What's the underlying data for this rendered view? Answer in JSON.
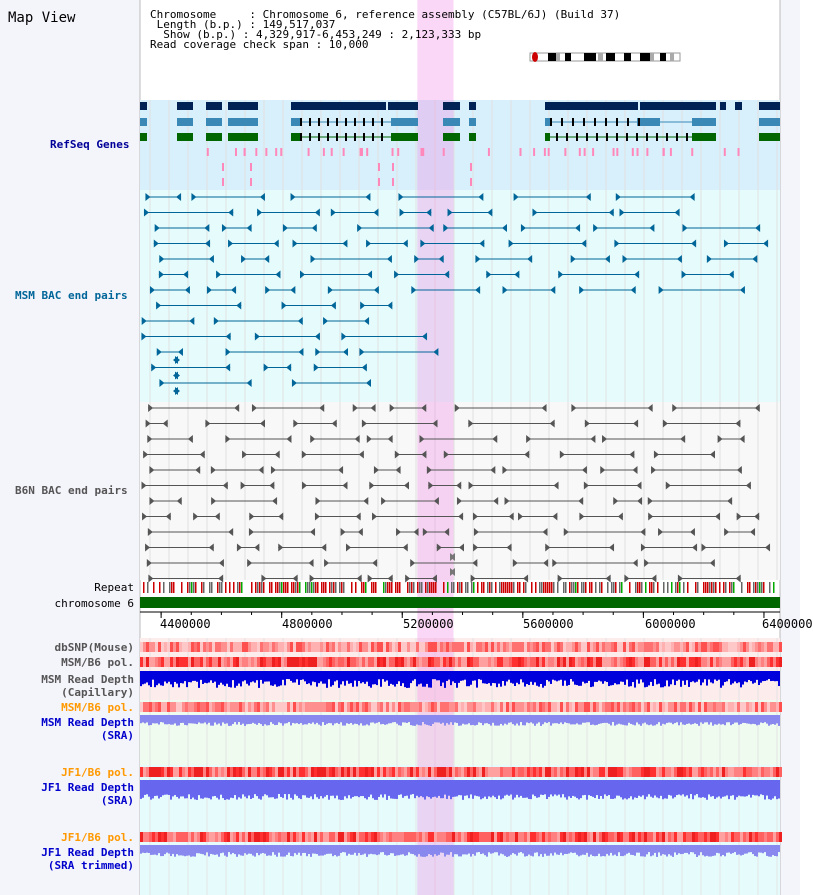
{
  "header": {
    "title": "Map View",
    "lines": [
      "Chromosome     : Chromosome 6, reference assembly (C57BL/6J) (Build 37)",
      " Length (b.p.) : 149,517,037",
      "  Show (b.p.) : 4,329,917-6,453,249 : 2,123,333 bp",
      "Read coverage check span : 10,000"
    ]
  },
  "tracks": {
    "refseq": {
      "label": "RefSeq Genes",
      "color": "#000099"
    },
    "msm_bac": {
      "label": "MSM BAC end pairs",
      "color": "#006699"
    },
    "b6n_bac": {
      "label": "B6N BAC end pairs",
      "color": "#555555"
    },
    "repeat": {
      "label": "Repeat"
    },
    "chromosome": {
      "label": "chromosome 6"
    },
    "dbsnp": {
      "label": "dbSNP(Mouse)"
    },
    "msm_b6_pol_cap": {
      "label": "MSM/B6 pol."
    },
    "msm_depth_cap": {
      "label": "MSM Read Depth",
      "sub": "(Capillary)"
    },
    "msm_b6_pol_sra": {
      "label": "MSM/B6 pol.",
      "color": "#ff9900"
    },
    "msm_depth_sra": {
      "label": "MSM Read Depth",
      "sub": "(SRA)",
      "color": "#0000cc"
    },
    "jf1_b6_pol_sra": {
      "label": "JF1/B6 pol.",
      "color": "#ff9900"
    },
    "jf1_depth_sra": {
      "label": "JF1 Read Depth",
      "sub": "(SRA)",
      "color": "#0000cc"
    },
    "jf1_b6_pol_trim": {
      "label": "JF1/B6 pol.",
      "color": "#ff9900"
    },
    "jf1_depth_trim": {
      "label": "JF1 Read Depth",
      "sub": "(SRA trimmed)",
      "color": "#0000cc"
    }
  },
  "axis": {
    "ticks": [
      "4400000",
      "4800000",
      "5200000",
      "5600000",
      "6000000",
      "6400000"
    ]
  },
  "highlight_region": [
    5250000,
    5370000
  ]
}
